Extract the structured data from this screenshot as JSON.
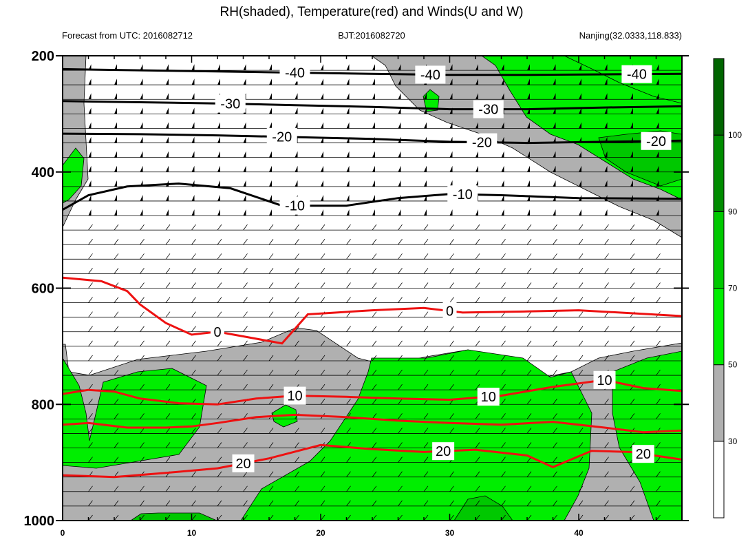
{
  "header": {
    "title": "RH(shaded), Temperature(red) and Winds(U and W)",
    "forecast": "Forecast from UTC: 2016082712",
    "bjt": "BJT:2016082720",
    "station": "Nanjing(32.0333,118.833)"
  },
  "colors": {
    "gray": "#b0b0b0",
    "green_light": "#00ee00",
    "green_mid": "#00c800",
    "green_dark": "#008c00",
    "green_darkest": "#006400",
    "temperature": "#ee1111",
    "contour": "#000000"
  },
  "chart_data": {
    "type": "heatmap",
    "title": "RH(shaded), Temperature(red) and Winds(U and W)",
    "x_ticks": [
      "0",
      "10",
      "20",
      "30",
      "40"
    ],
    "xlim": [
      0,
      48
    ],
    "y_ticks": [
      "200",
      "400",
      "600",
      "800",
      "1000"
    ],
    "ylim": [
      1000,
      200
    ],
    "y_reversed": true,
    "colorbar": {
      "levels": [
        30,
        50,
        70,
        90,
        100
      ],
      "labels": [
        "30",
        "50",
        "70",
        "90",
        "100"
      ],
      "colors": [
        "#ffffff",
        "#b0b0b0",
        "#00ee00",
        "#00c800",
        "#008c00",
        "#006400"
      ]
    },
    "black_contours": [
      {
        "value": -40,
        "labels": [
          "-40",
          "-40",
          "-40"
        ],
        "label_x": [
          18,
          28.5,
          44.5
        ],
        "x": [
          0,
          6,
          12,
          18,
          24,
          30,
          36,
          42,
          48
        ],
        "y": [
          223,
          225,
          227,
          229,
          231,
          233,
          233,
          232,
          231
        ]
      },
      {
        "value": -30,
        "labels": [
          "-30",
          "-30"
        ],
        "label_x": [
          13,
          33
        ],
        "x": [
          0,
          6,
          12,
          18,
          24,
          30,
          36,
          42,
          48
        ],
        "y": [
          278,
          280,
          282,
          285,
          288,
          292,
          292,
          289,
          287
        ]
      },
      {
        "value": -20,
        "labels": [
          "-20",
          "-20",
          "-20"
        ],
        "label_x": [
          17,
          32.5,
          46
        ],
        "x": [
          0,
          6,
          12,
          18,
          24,
          30,
          36,
          42,
          48
        ],
        "y": [
          334,
          335,
          337,
          340,
          343,
          348,
          350,
          348,
          346
        ]
      },
      {
        "value": -10,
        "labels": [
          "-10",
          "-10"
        ],
        "label_x": [
          18,
          31
        ],
        "x": [
          0,
          2,
          5,
          9,
          13,
          17,
          22,
          26,
          30,
          34,
          40,
          48
        ],
        "y": [
          465,
          440,
          425,
          420,
          428,
          458,
          458,
          445,
          438,
          440,
          445,
          446
        ]
      }
    ],
    "red_contours": [
      {
        "value": 0,
        "labels": [
          "0",
          "0"
        ],
        "label_x": [
          12,
          30
        ],
        "x": [
          0,
          3,
          5,
          6,
          8,
          10,
          12,
          14,
          17,
          19,
          24,
          28,
          31,
          36,
          40,
          44,
          48
        ],
        "y": [
          582,
          588,
          605,
          628,
          660,
          680,
          675,
          683,
          695,
          645,
          638,
          634,
          642,
          640,
          638,
          643,
          648
        ]
      },
      {
        "value": 10,
        "labels": [
          "10",
          "10",
          "10"
        ],
        "label_x": [
          18,
          33,
          42
        ],
        "x": [
          0,
          2,
          4,
          6,
          9,
          12,
          15,
          18,
          22,
          26,
          30,
          34,
          38,
          42,
          45,
          48
        ],
        "y": [
          782,
          775,
          778,
          790,
          798,
          800,
          790,
          785,
          787,
          790,
          792,
          785,
          770,
          758,
          772,
          777
        ]
      },
      {
        "value": 20,
        "labels": [
          "20",
          "20",
          "20"
        ],
        "label_x": [
          14,
          29.5,
          45
        ],
        "x": [
          0,
          4,
          8,
          12,
          16,
          20,
          24,
          28,
          32,
          36,
          38,
          41,
          44,
          48
        ],
        "y": [
          922,
          925,
          918,
          910,
          893,
          870,
          877,
          882,
          878,
          888,
          908,
          880,
          882,
          895
        ]
      },
      {
        "value": 30,
        "labels": [],
        "label_x": [],
        "x": [
          0,
          2,
          5,
          8,
          10,
          12,
          15,
          18,
          22,
          26,
          30,
          34,
          38,
          42,
          45,
          48
        ],
        "y": [
          835,
          832,
          840,
          840,
          838,
          832,
          822,
          818,
          822,
          828,
          832,
          835,
          830,
          840,
          848,
          845
        ]
      }
    ]
  }
}
